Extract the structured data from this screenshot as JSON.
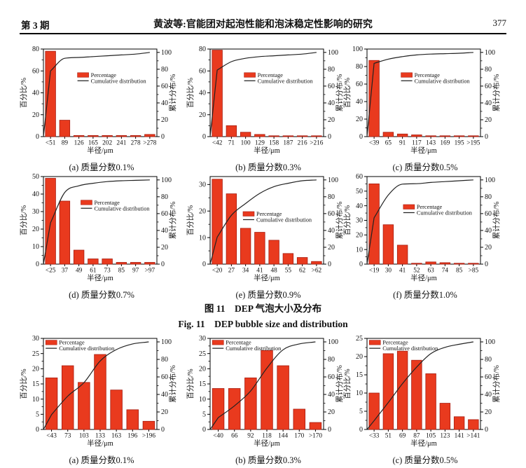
{
  "header": {
    "issue": "第 3 期",
    "title": "黄波等:官能团对起泡性能和泡沫稳定性影响的研究",
    "page": "377"
  },
  "figure": {
    "caption_cn": "图 11　DEP 气泡大小及分布",
    "caption_en": "Fig. 11　DEP bubble size and distribution"
  },
  "style": {
    "bar_color": "#e93a1e",
    "bar_edge": "#a81c10",
    "curve_color": "#222222"
  },
  "chart_data": [
    {
      "type": "bar",
      "caption": "(a) 质量分数0.1%",
      "categories": [
        "<51",
        "89",
        "126",
        "165",
        "202",
        "241",
        "278",
        ">278"
      ],
      "values": [
        78,
        15,
        1,
        1,
        1,
        1,
        1,
        2
      ],
      "cumulative": [
        78,
        93,
        94,
        95,
        96,
        97,
        98,
        100
      ],
      "ylabel": "百分比/%",
      "y2label": "累计分布/%",
      "xlabel": "半径/μm",
      "ylim": [
        0,
        80
      ],
      "yticks": [
        0,
        20,
        40,
        60,
        80
      ],
      "y2lim": [
        0,
        104
      ],
      "y2ticks": [
        0,
        20,
        40,
        60,
        80,
        100
      ],
      "legend": [
        "Percentage",
        "Cumulative distribution"
      ],
      "legend_pos": [
        0.3,
        0.27
      ],
      "grid": false
    },
    {
      "type": "bar",
      "caption": "(b) 质量分数0.3%",
      "categories": [
        "<42",
        "71",
        "100",
        "129",
        "158",
        "187",
        "216",
        ">216"
      ],
      "values": [
        79,
        10,
        4,
        2,
        0.6,
        0.6,
        0.6,
        0.6
      ],
      "cumulative": [
        79,
        89,
        93,
        95,
        96,
        97,
        98,
        100
      ],
      "ylabel": "百分比/%",
      "y2label": "累计分布/%",
      "xlabel": "半径/μm",
      "ylim": [
        0,
        80
      ],
      "yticks": [
        0,
        20,
        40,
        60,
        80
      ],
      "y2lim": [
        0,
        104
      ],
      "y2ticks": [
        0,
        20,
        40,
        60,
        80,
        100
      ],
      "legend": [
        "Percentage",
        "Cumulative distribution"
      ],
      "legend_pos": [
        0.3,
        0.27
      ],
      "grid": false
    },
    {
      "type": "bar",
      "caption": "(c) 质量分数0.5%",
      "categories": [
        "<39",
        "65",
        "91",
        "117",
        "143",
        "169",
        "195",
        ">195"
      ],
      "values": [
        87,
        5,
        3,
        2,
        0.6,
        0.6,
        0.6,
        0.6
      ],
      "cumulative": [
        87,
        92,
        95,
        97,
        98,
        98.5,
        99,
        100
      ],
      "ylabel": "百分比/%",
      "y2label": "累计分布/%",
      "xlabel": "半径/μm",
      "ylim": [
        0,
        100
      ],
      "yticks": [
        0,
        20,
        40,
        60,
        80,
        100
      ],
      "y2lim": [
        0,
        104
      ],
      "y2ticks": [
        0,
        20,
        40,
        60,
        80,
        100
      ],
      "legend": [
        "Percentage",
        "Cumulative distribution"
      ],
      "legend_pos": [
        0.3,
        0.27
      ],
      "grid": false
    },
    {
      "type": "bar",
      "caption": "(d) 质量分数0.7%",
      "categories": [
        "<25",
        "37",
        "49",
        "61",
        "73",
        "85",
        "97",
        ">97"
      ],
      "values": [
        49,
        36,
        8,
        3,
        3,
        1,
        1,
        1
      ],
      "cumulative": [
        49,
        85,
        93,
        96,
        98,
        99,
        99.5,
        100
      ],
      "ylabel": "百分比/%",
      "y2label": "累计分布/%",
      "xlabel": "半径/μm",
      "ylim": [
        0,
        50
      ],
      "yticks": [
        0,
        10,
        20,
        30,
        40,
        50
      ],
      "y2lim": [
        0,
        104
      ],
      "y2ticks": [
        0,
        20,
        40,
        60,
        80,
        100
      ],
      "legend": [
        "Percentage",
        "Cumulative distribution"
      ],
      "legend_pos": [
        0.33,
        0.27
      ],
      "grid": false
    },
    {
      "type": "bar",
      "caption": "(e) 质量分数0.9%",
      "categories": [
        "<20",
        "27",
        "34",
        "41",
        "48",
        "55",
        "62",
        ">62"
      ],
      "values": [
        32,
        26.5,
        13.5,
        12,
        9,
        4,
        2.5,
        1
      ],
      "cumulative": [
        32,
        58,
        72,
        84,
        92,
        96,
        99,
        100
      ],
      "ylabel": "百分比/%",
      "y2label": "累计分布/%",
      "xlabel": "半径/μm",
      "ylim": [
        0,
        33
      ],
      "yticks": [
        0,
        10,
        20,
        30
      ],
      "y2lim": [
        0,
        104
      ],
      "y2ticks": [
        0,
        20,
        40,
        60,
        80,
        100
      ],
      "legend": [
        "Percentage",
        "Cumulative distribution"
      ],
      "legend_pos": [
        0.29,
        0.4
      ],
      "grid": false
    },
    {
      "type": "bar",
      "caption": "(f) 质量分数1.0%",
      "categories": [
        "<19",
        "30",
        "41",
        "52",
        "63",
        "74",
        "85",
        ">85"
      ],
      "values": [
        55,
        27,
        13,
        0.6,
        1.5,
        1,
        0.6,
        0.6
      ],
      "cumulative": [
        55,
        82,
        95,
        95.5,
        97,
        98,
        99,
        100
      ],
      "ylabel": "百分比/%",
      "y2label": "累计分布/%",
      "xlabel": "半径/μm",
      "ylim": [
        0,
        60
      ],
      "yticks": [
        0,
        10,
        20,
        30,
        40,
        50,
        60
      ],
      "y2lim": [
        0,
        104
      ],
      "y2ticks": [
        0,
        20,
        40,
        60,
        80,
        100
      ],
      "legend": [
        "Percentage",
        "Cumulative distribution"
      ],
      "legend_pos": [
        0.32,
        0.32
      ],
      "grid": false
    },
    {
      "type": "bar",
      "caption": "(a) 质量分数0.1%",
      "categories": [
        "<43",
        "73",
        "103",
        "133",
        "163",
        "196",
        ">196"
      ],
      "values": [
        17,
        21,
        15.5,
        24.7,
        13,
        6.5,
        2.7
      ],
      "cumulative": [
        17,
        38,
        53.5,
        78.2,
        91.2,
        97.7,
        100
      ],
      "ylabel": "百分比/%",
      "y2label": "累计分布/%",
      "xlabel": "半径/μm",
      "ylim": [
        0,
        30
      ],
      "yticks": [
        0,
        5,
        10,
        15,
        20,
        25,
        30
      ],
      "y2lim": [
        0,
        104
      ],
      "y2ticks": [
        0,
        20,
        40,
        60,
        80,
        100
      ],
      "legend": [
        "Percentage",
        "Cumulative distribution"
      ],
      "legend_pos": [
        0.02,
        0.02
      ],
      "grid": false
    },
    {
      "type": "bar",
      "caption": "(b) 质量分数0.3%",
      "categories": [
        "<40",
        "66",
        "92",
        "118",
        "144",
        "170",
        ">170"
      ],
      "values": [
        13.5,
        13.5,
        17,
        26,
        21,
        6.7,
        2.3
      ],
      "cumulative": [
        13.5,
        27,
        44,
        70,
        91,
        97.7,
        100
      ],
      "ylabel": "百分比/%",
      "y2label": "累计分布/%",
      "xlabel": "半径/μm",
      "ylim": [
        0,
        30
      ],
      "yticks": [
        0,
        5,
        10,
        15,
        20,
        25,
        30
      ],
      "y2lim": [
        0,
        104
      ],
      "y2ticks": [
        0,
        20,
        40,
        60,
        80,
        100
      ],
      "legend": [
        "Percentage",
        "Cumulative distribution"
      ],
      "legend_pos": [
        0.02,
        0.02
      ],
      "grid": false
    },
    {
      "type": "bar",
      "caption": "(c) 质量分数0.5%",
      "categories": [
        "<33",
        "51",
        "69",
        "87",
        "105",
        "123",
        "141",
        ">141"
      ],
      "values": [
        10,
        20.8,
        21.5,
        19,
        15.3,
        7.2,
        3.5,
        2.7
      ],
      "cumulative": [
        10,
        30.8,
        52.3,
        71.3,
        86.6,
        93.8,
        97.3,
        100
      ],
      "ylabel": "百分比/%",
      "y2label": "累计分布/%",
      "xlabel": "半径/μm",
      "ylim": [
        0,
        25
      ],
      "yticks": [
        0,
        5,
        10,
        15,
        20,
        25
      ],
      "y2lim": [
        0,
        104
      ],
      "y2ticks": [
        0,
        20,
        40,
        60,
        80,
        100
      ],
      "legend": [
        "Percentage",
        "Cumulative distribution"
      ],
      "legend_pos": [
        0.02,
        0.02
      ],
      "grid": false
    }
  ]
}
